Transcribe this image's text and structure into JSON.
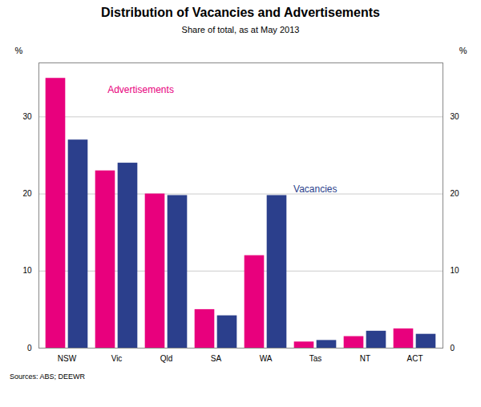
{
  "chart_data": {
    "type": "bar",
    "title": "Distribution of Vacancies and Advertisements",
    "subtitle": "Share of total, as at May 2013",
    "source": "Sources: ABS; DEEWR",
    "ylabel": "%",
    "categories": [
      "NSW",
      "Vic",
      "Qld",
      "SA",
      "WA",
      "Tas",
      "NT",
      "ACT"
    ],
    "series": [
      {
        "name": "Advertisements",
        "color": "#E8007D",
        "values": [
          35,
          23,
          20,
          5,
          12,
          0.8,
          1.5,
          2.5
        ]
      },
      {
        "name": "Vacancies",
        "color": "#2B3F8C",
        "values": [
          27,
          24,
          19.8,
          4.2,
          19.8,
          1.0,
          2.2,
          1.8
        ]
      }
    ],
    "ylim": [
      0,
      37
    ],
    "yticks": [
      0,
      10,
      20,
      30
    ],
    "grid": true
  }
}
